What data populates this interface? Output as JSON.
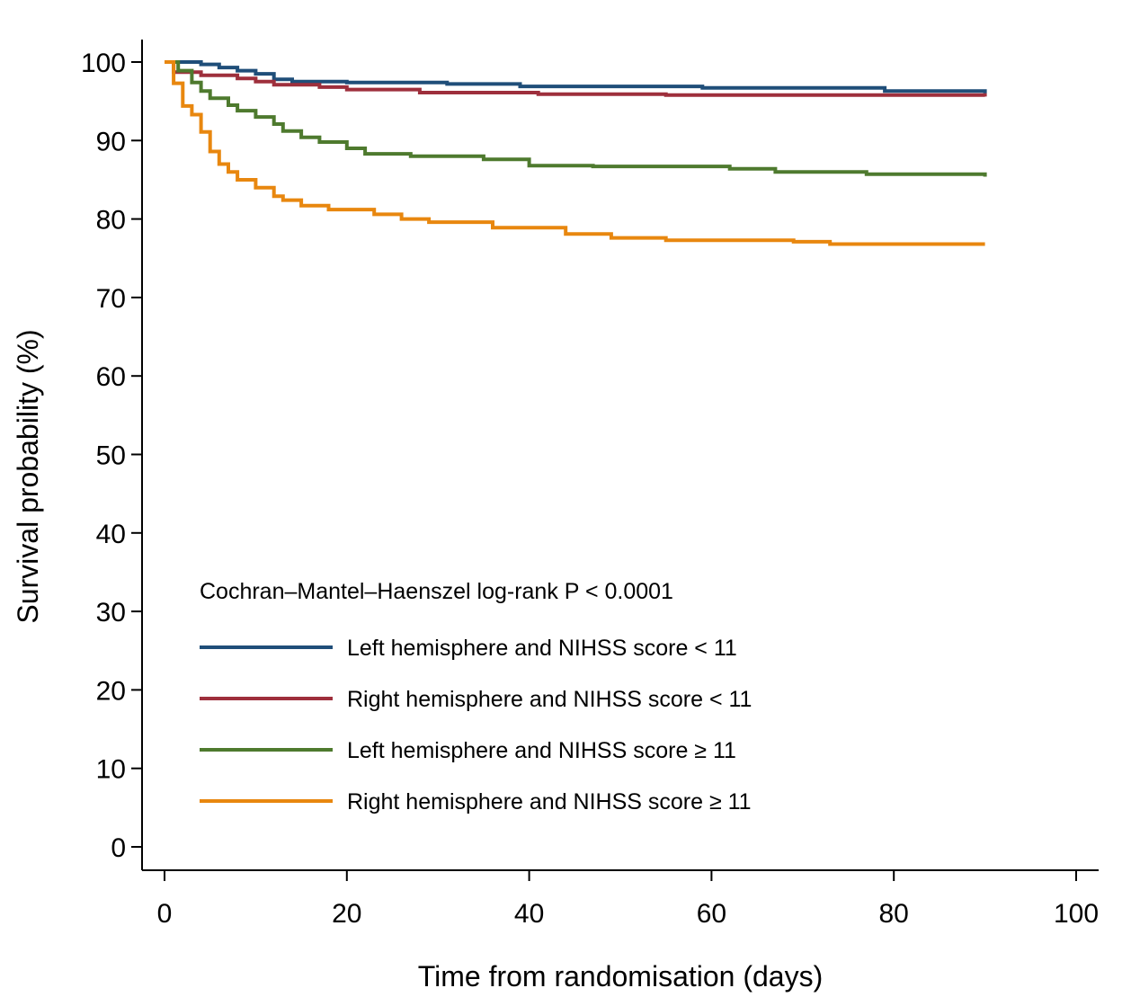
{
  "chart_data": {
    "type": "line",
    "title": "",
    "xlabel": "Time from randomisation (days)",
    "ylabel": "Survival probability (%)",
    "xlim": [
      0,
      100
    ],
    "ylim": [
      0,
      100
    ],
    "xticks": [
      0,
      20,
      40,
      60,
      80,
      100
    ],
    "yticks": [
      0,
      10,
      20,
      30,
      40,
      50,
      60,
      70,
      80,
      90,
      100
    ],
    "grid": false,
    "step": true,
    "legend_position": "lower-left",
    "annotation": "Cochran–Mantel–Haenszel log-rank P < 0.0001",
    "series": [
      {
        "name": "Left hemisphere and NIHSS score < 11",
        "color": "#1f4e79",
        "points": [
          [
            0,
            100
          ],
          [
            4,
            99.7
          ],
          [
            6,
            99.3
          ],
          [
            8,
            98.9
          ],
          [
            10,
            98.5
          ],
          [
            12,
            97.8
          ],
          [
            14,
            97.5
          ],
          [
            20,
            97.4
          ],
          [
            31,
            97.2
          ],
          [
            39,
            96.9
          ],
          [
            59,
            96.7
          ],
          [
            79,
            96.3
          ],
          [
            90,
            96.0
          ]
        ]
      },
      {
        "name": "Right hemisphere and NIHSS score < 11",
        "color": "#9e2f3c",
        "points": [
          [
            0,
            100
          ],
          [
            1,
            98.7
          ],
          [
            4,
            98.3
          ],
          [
            8,
            97.9
          ],
          [
            10,
            97.5
          ],
          [
            12,
            97.1
          ],
          [
            17,
            96.8
          ],
          [
            20,
            96.5
          ],
          [
            28,
            96.1
          ],
          [
            41,
            95.9
          ],
          [
            55,
            95.8
          ],
          [
            90,
            95.6
          ]
        ]
      },
      {
        "name": "Left hemisphere and NIHSS score ≥ 11",
        "color": "#4e7a2e",
        "points": [
          [
            0,
            100
          ],
          [
            1.5,
            98.9
          ],
          [
            3,
            97.4
          ],
          [
            4,
            96.3
          ],
          [
            5,
            95.4
          ],
          [
            7,
            94.5
          ],
          [
            8,
            93.8
          ],
          [
            10,
            93.0
          ],
          [
            12,
            92.1
          ],
          [
            13,
            91.2
          ],
          [
            15,
            90.4
          ],
          [
            17,
            89.8
          ],
          [
            20,
            89.0
          ],
          [
            22,
            88.3
          ],
          [
            27,
            88.0
          ],
          [
            35,
            87.6
          ],
          [
            40,
            86.8
          ],
          [
            47,
            86.7
          ],
          [
            62,
            86.4
          ],
          [
            67,
            86.0
          ],
          [
            77,
            85.7
          ],
          [
            90,
            85.4
          ]
        ]
      },
      {
        "name": "Right hemisphere and NIHSS score ≥ 11",
        "color": "#e8870f",
        "points": [
          [
            0,
            100
          ],
          [
            1,
            97.3
          ],
          [
            2,
            94.4
          ],
          [
            3,
            93.3
          ],
          [
            4,
            91.1
          ],
          [
            5,
            88.6
          ],
          [
            6,
            87.0
          ],
          [
            7,
            86.0
          ],
          [
            8,
            85.0
          ],
          [
            10,
            84.0
          ],
          [
            12,
            82.9
          ],
          [
            13,
            82.4
          ],
          [
            15,
            81.7
          ],
          [
            18,
            81.2
          ],
          [
            23,
            80.6
          ],
          [
            26,
            80.0
          ],
          [
            29,
            79.6
          ],
          [
            36,
            78.9
          ],
          [
            44,
            78.1
          ],
          [
            49,
            77.6
          ],
          [
            55,
            77.3
          ],
          [
            69,
            77.1
          ],
          [
            73,
            76.8
          ],
          [
            90,
            76.8
          ]
        ]
      }
    ]
  }
}
